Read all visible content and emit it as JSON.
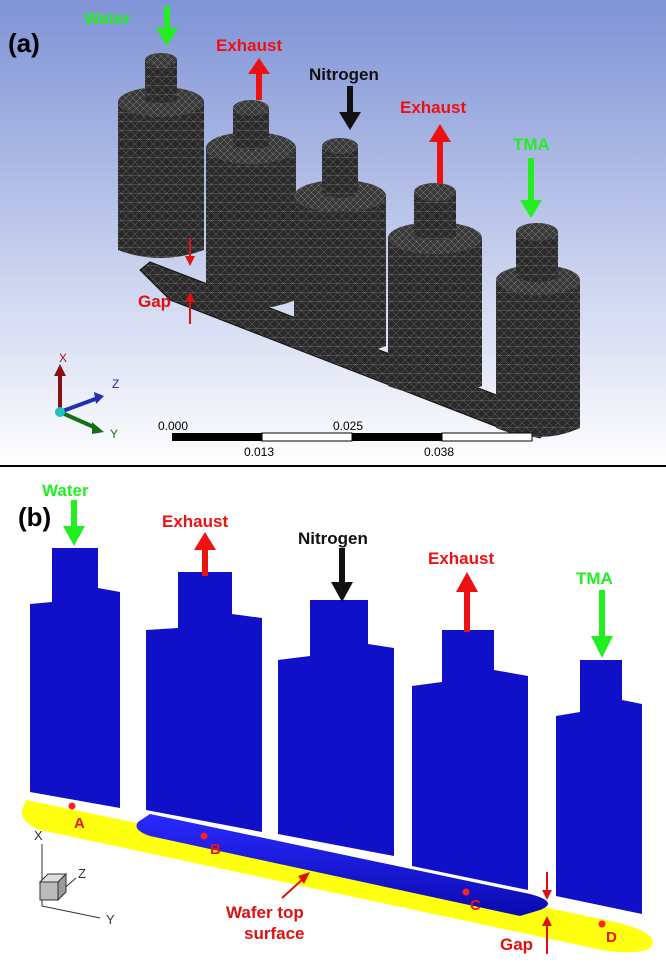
{
  "panel_a": {
    "label": "(a)",
    "inlets": {
      "water": "Water",
      "exhaust_1": "Exhaust",
      "nitrogen": "Nitrogen",
      "exhaust_2": "Exhaust",
      "tma": "TMA"
    },
    "gap_label": "Gap",
    "axes": {
      "x": "X",
      "y": "Y",
      "z": "Z"
    },
    "scale": {
      "top_ticks": [
        "0.000",
        "0.025"
      ],
      "bottom_ticks": [
        "0.013",
        "0.038"
      ]
    }
  },
  "panel_b": {
    "label": "(b)",
    "inlets": {
      "water": "Water",
      "exhaust_1": "Exhaust",
      "nitrogen": "Nitrogen",
      "exhaust_2": "Exhaust",
      "tma": "TMA"
    },
    "points": {
      "a": "A",
      "b": "B",
      "c": "C",
      "d": "D"
    },
    "wafer_label_line1": "Wafer top",
    "wafer_label_line2": "surface",
    "gap_label": "Gap",
    "axes": {
      "x": "X",
      "y": "Y",
      "z": "Z"
    }
  },
  "colors": {
    "inlet": "#22ee22",
    "exhaust": "#ee1111",
    "nitrogen": "#111111",
    "annotation": "#dd1111",
    "domain_blue": "#1010c8",
    "wafer_yellow": "#ffff10",
    "mesh_dark": "#2a2a2a"
  }
}
